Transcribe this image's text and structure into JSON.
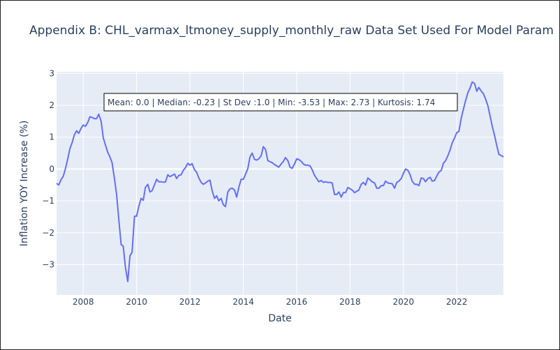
{
  "chart_data": {
    "type": "line",
    "title": "Appendix B: CHL_varmax_ltmoney_supply_monthly_raw Data Set Used For Model Param",
    "xlabel": "Date",
    "ylabel": "Inflation YOY Increase (%)",
    "annotation": "Mean: 0.0 | Median: -0.23 | St Dev :1.0 | Min: -3.53 | Max: 2.73 | Kurtosis: 1.74",
    "xlim": [
      2007.0,
      2023.75
    ],
    "ylim": [
      -3.95,
      3.05
    ],
    "x_ticks": [
      2008,
      2010,
      2012,
      2014,
      2016,
      2018,
      2020,
      2022
    ],
    "y_ticks": [
      3,
      2,
      1,
      0,
      -1,
      -2,
      -3
    ],
    "tick_labels_x": [
      "2008",
      "2010",
      "2012",
      "2014",
      "2016",
      "2018",
      "2020",
      "2022"
    ],
    "tick_labels_y": [
      "3",
      "2",
      "1",
      "0",
      "−1",
      "−2",
      "−3"
    ],
    "grid": true,
    "colors": {
      "line": "#636efa",
      "plot_bg": "#e5ecf6",
      "grid": "#ffffff",
      "text": "#2a3f5f"
    },
    "series": [
      {
        "x": [
          2007.0,
          2007.08,
          2007.17,
          2007.25,
          2007.33,
          2007.42,
          2007.5,
          2007.58,
          2007.67,
          2007.75,
          2007.83,
          2007.92,
          2008.0,
          2008.08,
          2008.17,
          2008.25,
          2008.33,
          2008.42,
          2008.5,
          2008.58,
          2008.67,
          2008.75,
          2008.83,
          2008.92,
          2009.0,
          2009.08,
          2009.17,
          2009.25,
          2009.33,
          2009.42,
          2009.5,
          2009.58,
          2009.67,
          2009.75,
          2009.83,
          2009.92,
          2010.0,
          2010.08,
          2010.17,
          2010.25,
          2010.33,
          2010.42,
          2010.5,
          2010.58,
          2010.67,
          2010.75,
          2010.83,
          2010.92,
          2011.0,
          2011.08,
          2011.17,
          2011.25,
          2011.33,
          2011.42,
          2011.5,
          2011.58,
          2011.67,
          2011.75,
          2011.83,
          2011.92,
          2012.0,
          2012.08,
          2012.17,
          2012.25,
          2012.33,
          2012.42,
          2012.5,
          2012.58,
          2012.67,
          2012.75,
          2012.83,
          2012.92,
          2013.0,
          2013.08,
          2013.17,
          2013.25,
          2013.33,
          2013.42,
          2013.5,
          2013.58,
          2013.67,
          2013.75,
          2013.83,
          2013.92,
          2014.0,
          2014.08,
          2014.17,
          2014.25,
          2014.33,
          2014.42,
          2014.5,
          2014.58,
          2014.67,
          2014.75,
          2014.83,
          2014.92,
          2015.0,
          2015.08,
          2015.17,
          2015.25,
          2015.33,
          2015.42,
          2015.5,
          2015.58,
          2015.67,
          2015.75,
          2015.83,
          2015.92,
          2016.0,
          2016.08,
          2016.17,
          2016.25,
          2016.33,
          2016.42,
          2016.5,
          2016.58,
          2016.67,
          2016.75,
          2016.83,
          2016.92,
          2017.0,
          2017.08,
          2017.17,
          2017.25,
          2017.33,
          2017.42,
          2017.5,
          2017.58,
          2017.67,
          2017.75,
          2017.83,
          2017.92,
          2018.0,
          2018.08,
          2018.17,
          2018.25,
          2018.33,
          2018.42,
          2018.5,
          2018.58,
          2018.67,
          2018.75,
          2018.83,
          2018.92,
          2019.0,
          2019.08,
          2019.17,
          2019.25,
          2019.33,
          2019.42,
          2019.5,
          2019.58,
          2019.67,
          2019.75,
          2019.83,
          2019.92,
          2020.0,
          2020.08,
          2020.17,
          2020.25,
          2020.33,
          2020.42,
          2020.5,
          2020.58,
          2020.67,
          2020.75,
          2020.83,
          2020.92,
          2021.0,
          2021.08,
          2021.17,
          2021.25,
          2021.33,
          2021.42,
          2021.5,
          2021.58,
          2021.67,
          2021.75,
          2021.83,
          2021.92,
          2022.0,
          2022.08,
          2022.17,
          2022.25,
          2022.33,
          2022.42,
          2022.5,
          2022.58,
          2022.67,
          2022.75,
          2022.83,
          2022.92,
          2023.0,
          2023.08,
          2023.17,
          2023.25,
          2023.33,
          2023.42,
          2023.5,
          2023.58,
          2023.67,
          2023.75
        ],
        "y": [
          -0.45,
          -0.5,
          -0.33,
          -0.23,
          0.0,
          0.32,
          0.64,
          0.82,
          1.08,
          1.2,
          1.12,
          1.28,
          1.38,
          1.34,
          1.46,
          1.64,
          1.62,
          1.58,
          1.58,
          1.72,
          1.5,
          0.98,
          0.76,
          0.52,
          0.38,
          0.2,
          -0.3,
          -0.8,
          -1.55,
          -2.37,
          -2.42,
          -3.08,
          -3.53,
          -2.72,
          -2.62,
          -1.48,
          -1.48,
          -1.18,
          -0.92,
          -0.98,
          -0.58,
          -0.48,
          -0.72,
          -0.68,
          -0.5,
          -0.32,
          -0.4,
          -0.4,
          -0.41,
          -0.41,
          -0.18,
          -0.24,
          -0.2,
          -0.16,
          -0.3,
          -0.2,
          -0.18,
          -0.04,
          0.04,
          0.18,
          0.12,
          0.17,
          -0.02,
          -0.1,
          -0.28,
          -0.42,
          -0.48,
          -0.44,
          -0.38,
          -0.35,
          -0.68,
          -0.92,
          -0.84,
          -1.0,
          -0.92,
          -1.12,
          -1.18,
          -0.72,
          -0.62,
          -0.6,
          -0.66,
          -0.88,
          -0.58,
          -0.32,
          -0.32,
          -0.17,
          0.02,
          0.38,
          0.5,
          0.3,
          0.28,
          0.32,
          0.42,
          0.7,
          0.62,
          0.26,
          0.23,
          0.2,
          0.14,
          0.1,
          0.06,
          0.16,
          0.24,
          0.36,
          0.26,
          0.06,
          0.02,
          0.16,
          0.32,
          0.3,
          0.24,
          0.16,
          0.12,
          0.12,
          0.1,
          -0.02,
          -0.2,
          -0.3,
          -0.4,
          -0.36,
          -0.42,
          -0.4,
          -0.42,
          -0.42,
          -0.44,
          -0.8,
          -0.8,
          -0.72,
          -0.88,
          -0.74,
          -0.74,
          -0.58,
          -0.62,
          -0.66,
          -0.74,
          -0.7,
          -0.66,
          -0.48,
          -0.42,
          -0.5,
          -0.28,
          -0.34,
          -0.4,
          -0.44,
          -0.6,
          -0.6,
          -0.52,
          -0.52,
          -0.38,
          -0.44,
          -0.45,
          -0.46,
          -0.6,
          -0.42,
          -0.38,
          -0.3,
          -0.14,
          0.0,
          -0.04,
          -0.18,
          -0.38,
          -0.48,
          -0.48,
          -0.52,
          -0.28,
          -0.3,
          -0.4,
          -0.3,
          -0.26,
          -0.38,
          -0.36,
          -0.22,
          -0.1,
          -0.04,
          0.18,
          0.26,
          0.42,
          0.6,
          0.82,
          0.98,
          1.14,
          1.18,
          1.6,
          1.88,
          2.14,
          2.4,
          2.54,
          2.73,
          2.68,
          2.44,
          2.56,
          2.44,
          2.36,
          2.2,
          1.98,
          1.66,
          1.34,
          1.04,
          0.74,
          0.46,
          0.42,
          0.38
        ]
      }
    ]
  }
}
